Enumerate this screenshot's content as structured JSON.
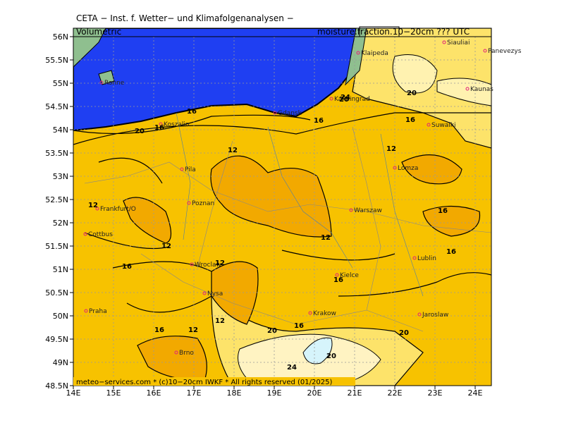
{
  "header": {
    "title": "CETA − Inst. f. Wetter− und Klimafolgenanalysen −",
    "left": "Volumetric",
    "right_prefix": "moisture.",
    "right_boxed": "fraction",
    "right_suffix": ".10−20cm ??? UTC"
  },
  "footer": "meteo−services.com * (c)10−20cm IWKF * All rights reserved (01/2025)",
  "lon_ticks": [
    "14E",
    "15E",
    "16E",
    "17E",
    "18E",
    "19E",
    "20E",
    "21E",
    "22E",
    "23E",
    "24E"
  ],
  "lat_ticks": [
    "56N",
    "55.5N",
    "55N",
    "54.5N",
    "54N",
    "53.5N",
    "53N",
    "52.5N",
    "52N",
    "51.5N",
    "51N",
    "50.5N",
    "50N",
    "49.5N",
    "49N",
    "48.5N"
  ],
  "cities": [
    "Ronne",
    "Koszalin",
    "Gdansk",
    "Kaliningrad",
    "Klaipeda",
    "Siauliai",
    "Panevezys",
    "Kaunas",
    "Suwalki",
    "Lomza",
    "Pila",
    "Poznan",
    "Frankfurt/O",
    "Cottbus",
    "Warszaw",
    "Lublin",
    "Wroclaw",
    "Kielce",
    "Nysa",
    "Praha",
    "Krakow",
    "Jaroslaw",
    "Brno"
  ],
  "contour_labels": [
    "16",
    "16",
    "20",
    "16",
    "12",
    "12",
    "12",
    "12",
    "12",
    "12",
    "16",
    "16",
    "12",
    "16",
    "16",
    "12",
    "16",
    "16",
    "20",
    "20",
    "20",
    "24",
    "24",
    "20",
    "16",
    "20"
  ]
}
